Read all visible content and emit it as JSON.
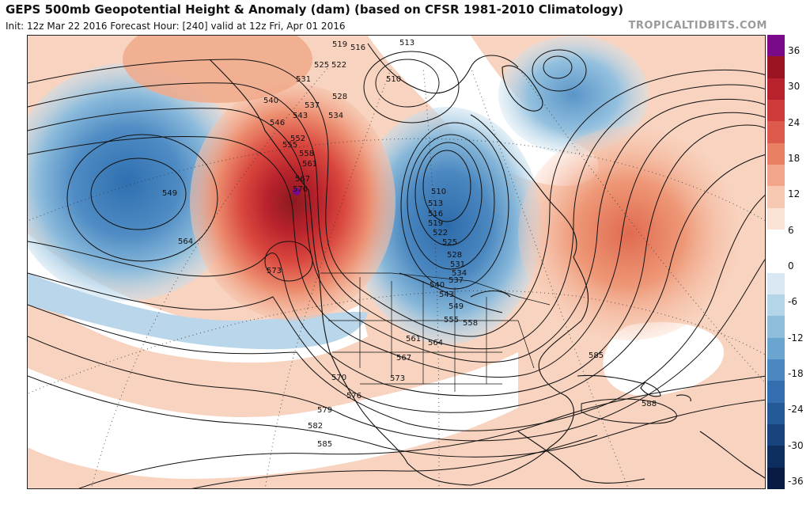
{
  "header": {
    "title": "GEPS 500mb Geopotential Height & Anomaly (dam) (based on CFSR 1981-2010 Climatology)",
    "subtitle": "Init: 12z Mar 22 2016   Forecast Hour: [240]   valid at 12z Fri, Apr 01 2016",
    "brand": "TROPICALTIDBITS.COM"
  },
  "colorbar": {
    "ticks": [
      "36",
      "30",
      "24",
      "18",
      "12",
      "6",
      "0",
      "-6",
      "-12",
      "-18",
      "-24",
      "-30",
      "-36"
    ],
    "colors": [
      "#7a0a8a",
      "#9b1422",
      "#b8222c",
      "#cf3b3b",
      "#de5a4c",
      "#e97f64",
      "#f2a58a",
      "#f7c8b2",
      "#fbe4d6",
      "#ffffff",
      "#ffffff",
      "#d9e8f2",
      "#b4d4e8",
      "#8fbedd",
      "#6aa4cf",
      "#4b88c0",
      "#356eae",
      "#255896",
      "#18427c",
      "#0e2e60",
      "#071a44"
    ]
  },
  "contour_labels": [
    "510",
    "513",
    "516",
    "519",
    "522",
    "525",
    "528",
    "531",
    "534",
    "537",
    "540",
    "543",
    "546",
    "549",
    "552",
    "555",
    "558",
    "561",
    "564",
    "567",
    "570",
    "573",
    "576",
    "579",
    "582",
    "585",
    "588"
  ],
  "map_labels": {
    "top_519": "519",
    "top_516": "516",
    "top_513": "513",
    "top_525": "525",
    "top_522": "522",
    "ak_531": "531",
    "ak_528": "528",
    "ak_540": "540",
    "ak_537": "537",
    "ak_543": "543",
    "ak_534": "534",
    "ak_546": "546",
    "bc_552": "552",
    "bc_555": "555",
    "bc_558": "558",
    "bc_561": "561",
    "bc_567": "567",
    "bc_570": "570",
    "bc_573": "573",
    "pac_549": "549",
    "pac_564": "564",
    "low_510a": "510",
    "low_510b": "510",
    "low_513": "513",
    "low_516": "516",
    "low_519": "519",
    "low_522": "522",
    "low_525": "525",
    "low_528": "528",
    "low_531": "531",
    "low_534": "534",
    "low_537": "537",
    "low_540": "540",
    "low_543": "543",
    "low_549": "549",
    "low_555": "555",
    "low_558": "558",
    "low_561": "561",
    "low_564": "564",
    "low_567": "567",
    "sw_570": "570",
    "sw_573": "573",
    "sw_576": "576",
    "sw_579": "579",
    "sw_582": "582",
    "sw_585": "585",
    "atl_585": "585",
    "atl_588": "588"
  }
}
